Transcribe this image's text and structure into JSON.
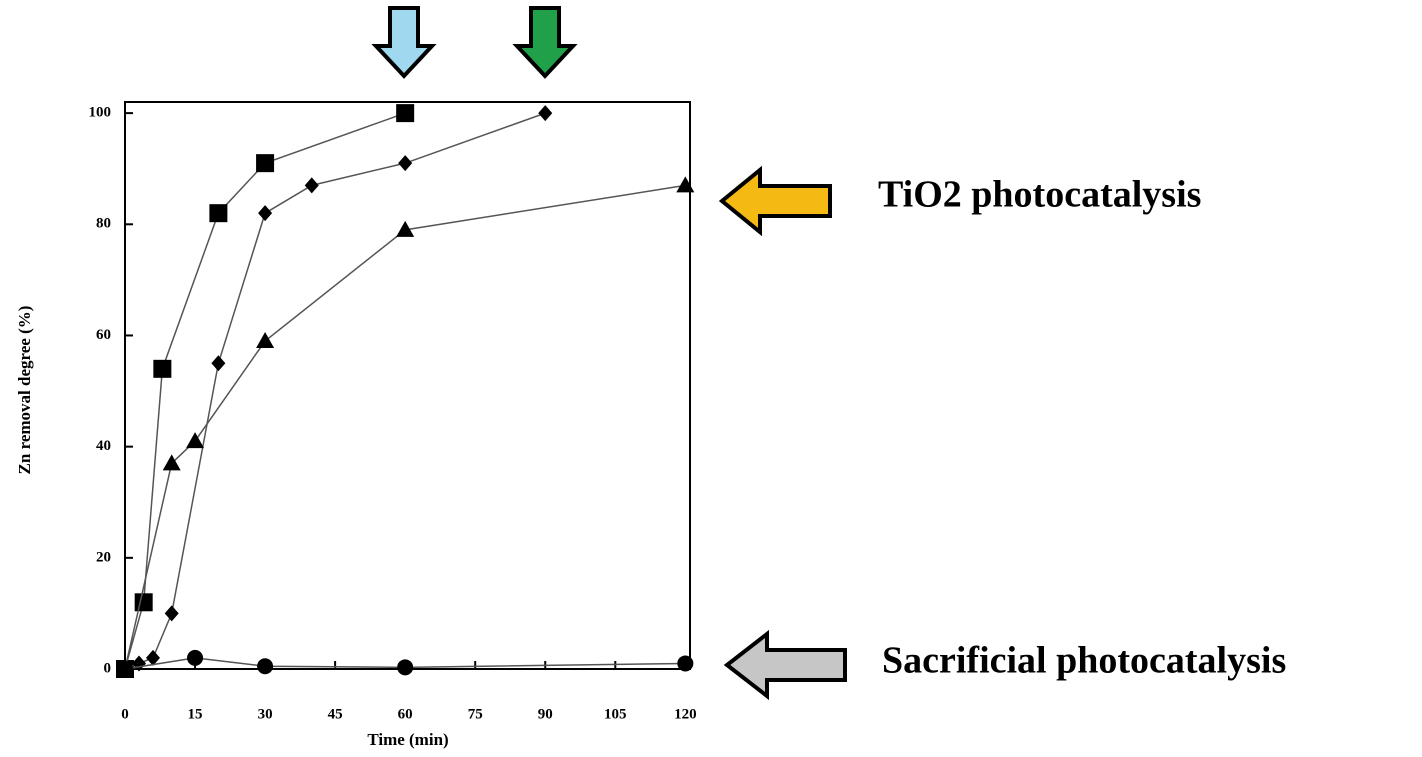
{
  "chart_data": {
    "type": "line",
    "x_label": "Time (min)",
    "y_label": "Zn removal degree (%)",
    "xlim": [
      0,
      121
    ],
    "ylim": [
      0,
      102
    ],
    "xticks": [
      0,
      15,
      30,
      45,
      60,
      75,
      90,
      105,
      120
    ],
    "yticks": [
      0,
      20,
      40,
      60,
      80,
      100
    ],
    "series": [
      {
        "marker": "square",
        "color": "#000000",
        "x": [
          0,
          4,
          8,
          20,
          30,
          60
        ],
        "values": [
          0,
          12,
          54,
          82,
          91,
          100
        ]
      },
      {
        "marker": "diamond",
        "color": "#000000",
        "x": [
          0,
          3,
          6,
          10,
          20,
          30,
          40,
          60,
          90
        ],
        "values": [
          0,
          1,
          2,
          10,
          55,
          82,
          87,
          91,
          100
        ]
      },
      {
        "marker": "triangle",
        "color": "#000000",
        "x": [
          0,
          10,
          15,
          30,
          60,
          120
        ],
        "values": [
          0,
          37,
          41,
          59,
          79,
          87
        ]
      },
      {
        "marker": "circle",
        "color": "#000000",
        "x": [
          0,
          15,
          30,
          60,
          120
        ],
        "values": [
          0,
          2,
          0.5,
          0.3,
          1
        ]
      }
    ],
    "annotations": [
      "TiO2 photocatalysis",
      "Sacrificial photocatalysis"
    ]
  }
}
